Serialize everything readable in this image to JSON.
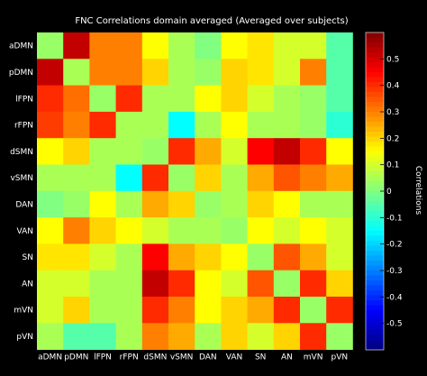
{
  "chart_data": {
    "type": "heatmap",
    "title": "FNC Correlations domain averaged (Averaged over subjects)",
    "row_labels": [
      "aDMN",
      "pDMN",
      "lFPN",
      "rFPN",
      "dSMN",
      "vSMN",
      "DAN",
      "VAN",
      "SN",
      "AN",
      "mVN",
      "pVN"
    ],
    "col_labels": [
      "aDMN",
      "pDMN",
      "lFPN",
      "rFPN",
      "dSMN",
      "vSMN",
      "DAN",
      "VAN",
      "SN",
      "AN",
      "mVN",
      "pVN"
    ],
    "values": [
      [
        0.03,
        0.52,
        0.3,
        0.3,
        0.15,
        0.05,
        0.0,
        0.15,
        0.18,
        0.1,
        0.1,
        -0.05
      ],
      [
        0.52,
        0.05,
        0.3,
        0.3,
        0.2,
        0.05,
        0.03,
        0.2,
        0.18,
        0.1,
        0.3,
        -0.05
      ],
      [
        0.4,
        0.32,
        0.03,
        0.4,
        0.05,
        0.05,
        0.15,
        0.2,
        0.1,
        0.05,
        0.03,
        -0.05
      ],
      [
        0.38,
        0.3,
        0.4,
        0.05,
        0.05,
        -0.15,
        0.05,
        0.15,
        0.05,
        0.05,
        0.03,
        -0.1
      ],
      [
        0.15,
        0.2,
        0.05,
        0.05,
        0.03,
        0.4,
        0.25,
        0.1,
        0.45,
        0.52,
        0.4,
        0.15
      ],
      [
        0.05,
        0.05,
        0.05,
        -0.15,
        0.4,
        0.03,
        0.2,
        0.05,
        0.25,
        0.35,
        0.3,
        0.25
      ],
      [
        0.0,
        0.03,
        0.15,
        0.05,
        0.25,
        0.2,
        0.03,
        0.05,
        0.2,
        0.15,
        0.05,
        0.05
      ],
      [
        0.15,
        0.3,
        0.2,
        0.15,
        0.1,
        0.05,
        0.05,
        0.03,
        0.15,
        0.1,
        0.15,
        0.1
      ],
      [
        0.18,
        0.18,
        0.1,
        0.05,
        0.45,
        0.25,
        0.2,
        0.15,
        0.03,
        0.35,
        0.25,
        0.1
      ],
      [
        0.1,
        0.1,
        0.05,
        0.05,
        0.52,
        0.4,
        0.15,
        0.1,
        0.35,
        0.03,
        0.4,
        0.2
      ],
      [
        0.1,
        0.2,
        0.05,
        0.05,
        0.4,
        0.3,
        0.15,
        0.2,
        0.25,
        0.4,
        0.03,
        0.4
      ],
      [
        0.05,
        -0.05,
        -0.05,
        0.05,
        0.3,
        0.25,
        0.05,
        0.2,
        0.1,
        0.2,
        0.4,
        0.03
      ]
    ],
    "zlim": [
      -0.6,
      0.6
    ],
    "colorbar": {
      "label": "Correlations",
      "ticks": [
        0.5,
        0.4,
        0.3,
        0.2,
        0.1,
        0,
        -0.1,
        -0.2,
        -0.3,
        -0.4,
        -0.5
      ]
    },
    "colormap": "jet"
  }
}
